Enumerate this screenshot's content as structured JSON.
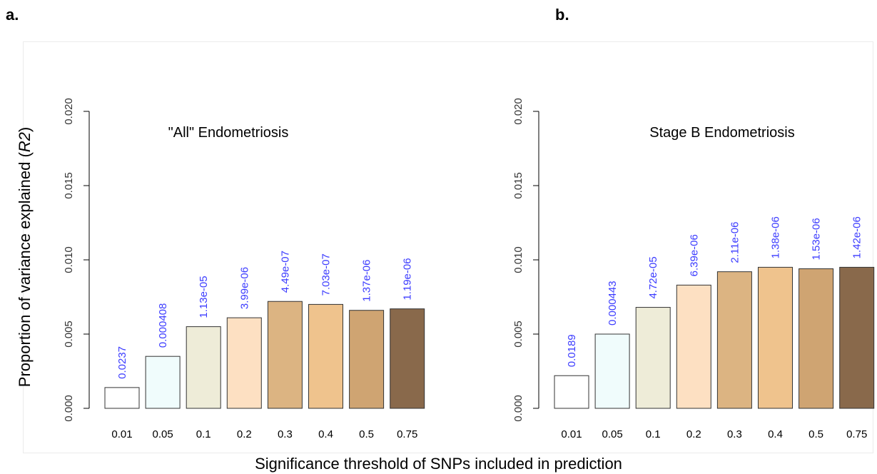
{
  "panels": {
    "a": "a.",
    "b": "b."
  },
  "ylabel": "Proportion of variance explained (R2)",
  "xlabel": "Significance threshold of SNPs included in prediction",
  "colors": [
    "#ffffff",
    "#f0fcfc",
    "#eeecd8",
    "#fde0c2",
    "#dcb482",
    "#efc38d",
    "#cfa472",
    "#89694b"
  ],
  "label_color": "#3b3bff",
  "chart_data": [
    {
      "type": "bar",
      "title": "\"All\" Endometriosis",
      "categories": [
        "0.01",
        "0.05",
        "0.1",
        "0.2",
        "0.3",
        "0.4",
        "0.5",
        "0.75"
      ],
      "values": [
        0.0014,
        0.0035,
        0.0055,
        0.0061,
        0.0072,
        0.007,
        0.0066,
        0.0067
      ],
      "data_labels": [
        "0.0237",
        "0.000408",
        "1.13e-05",
        "3.99e-06",
        "4.49e-07",
        "7.03e-07",
        "1.37e-06",
        "1.19e-06"
      ],
      "ylim": [
        0,
        0.02
      ],
      "yticks": [
        "0.000",
        "0.005",
        "0.010",
        "0.015",
        "0.020"
      ],
      "ylabel": "Proportion of variance explained (R2)",
      "xlabel": "Significance threshold of SNPs included in prediction"
    },
    {
      "type": "bar",
      "title": "Stage B Endometriosis",
      "categories": [
        "0.01",
        "0.05",
        "0.1",
        "0.2",
        "0.3",
        "0.4",
        "0.5",
        "0.75"
      ],
      "values": [
        0.0022,
        0.005,
        0.0068,
        0.0083,
        0.0092,
        0.0095,
        0.0094,
        0.0095
      ],
      "data_labels": [
        "0.0189",
        "0.000443",
        "4.72e-05",
        "6.39e-06",
        "2.11e-06",
        "1.38e-06",
        "1.53e-06",
        "1.42e-06"
      ],
      "ylim": [
        0,
        0.02
      ],
      "yticks": [
        "0.000",
        "0.005",
        "0.010",
        "0.015",
        "0.020"
      ],
      "ylabel": "",
      "xlabel": "Significance threshold of SNPs included in prediction"
    }
  ]
}
